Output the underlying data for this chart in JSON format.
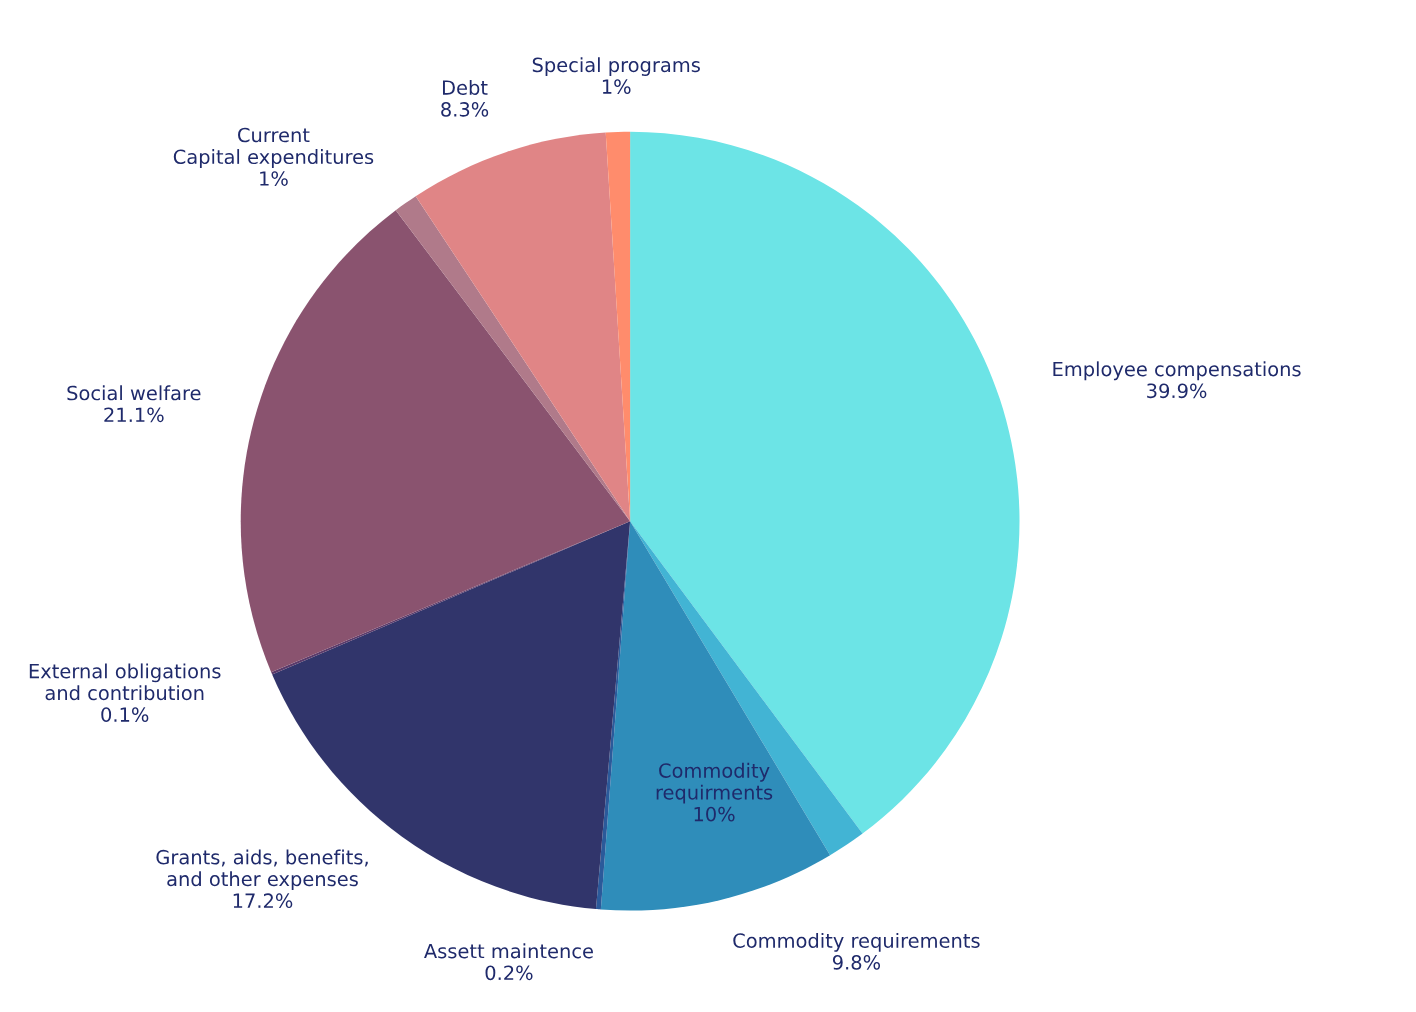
{
  "chart_data": {
    "type": "pie",
    "categories": [
      "Employee compensations",
      null,
      "Commodity requirements",
      "Assett maintence",
      "Grants, aids, benefits, and other expenses",
      "External obligations and contribution",
      "Social welfare",
      "Current Capital expenditures",
      "Debt",
      "Special programs"
    ],
    "values": [
      39.9,
      1.6,
      9.8,
      0.2,
      17.2,
      0.1,
      21.1,
      1,
      8.3,
      1
    ],
    "colors": [
      "#6ce4e6",
      "#42b4d4",
      "#2f8dba",
      "#2b5a9a",
      "#31356b",
      "#5a3a6a",
      "#8a536f",
      "#b07a8a",
      "#e08586",
      "#ff8c6c"
    ],
    "value_labels": [
      "39.9%",
      null,
      "9.8%",
      "0.2%",
      "17.2%",
      "0.1%",
      "21.1%",
      "1%",
      "8.3%",
      "1%"
    ],
    "annotations": [
      {
        "text": "Commodity requirments\n10%",
        "x": "Commodity requirements"
      }
    ],
    "legend": false
  }
}
